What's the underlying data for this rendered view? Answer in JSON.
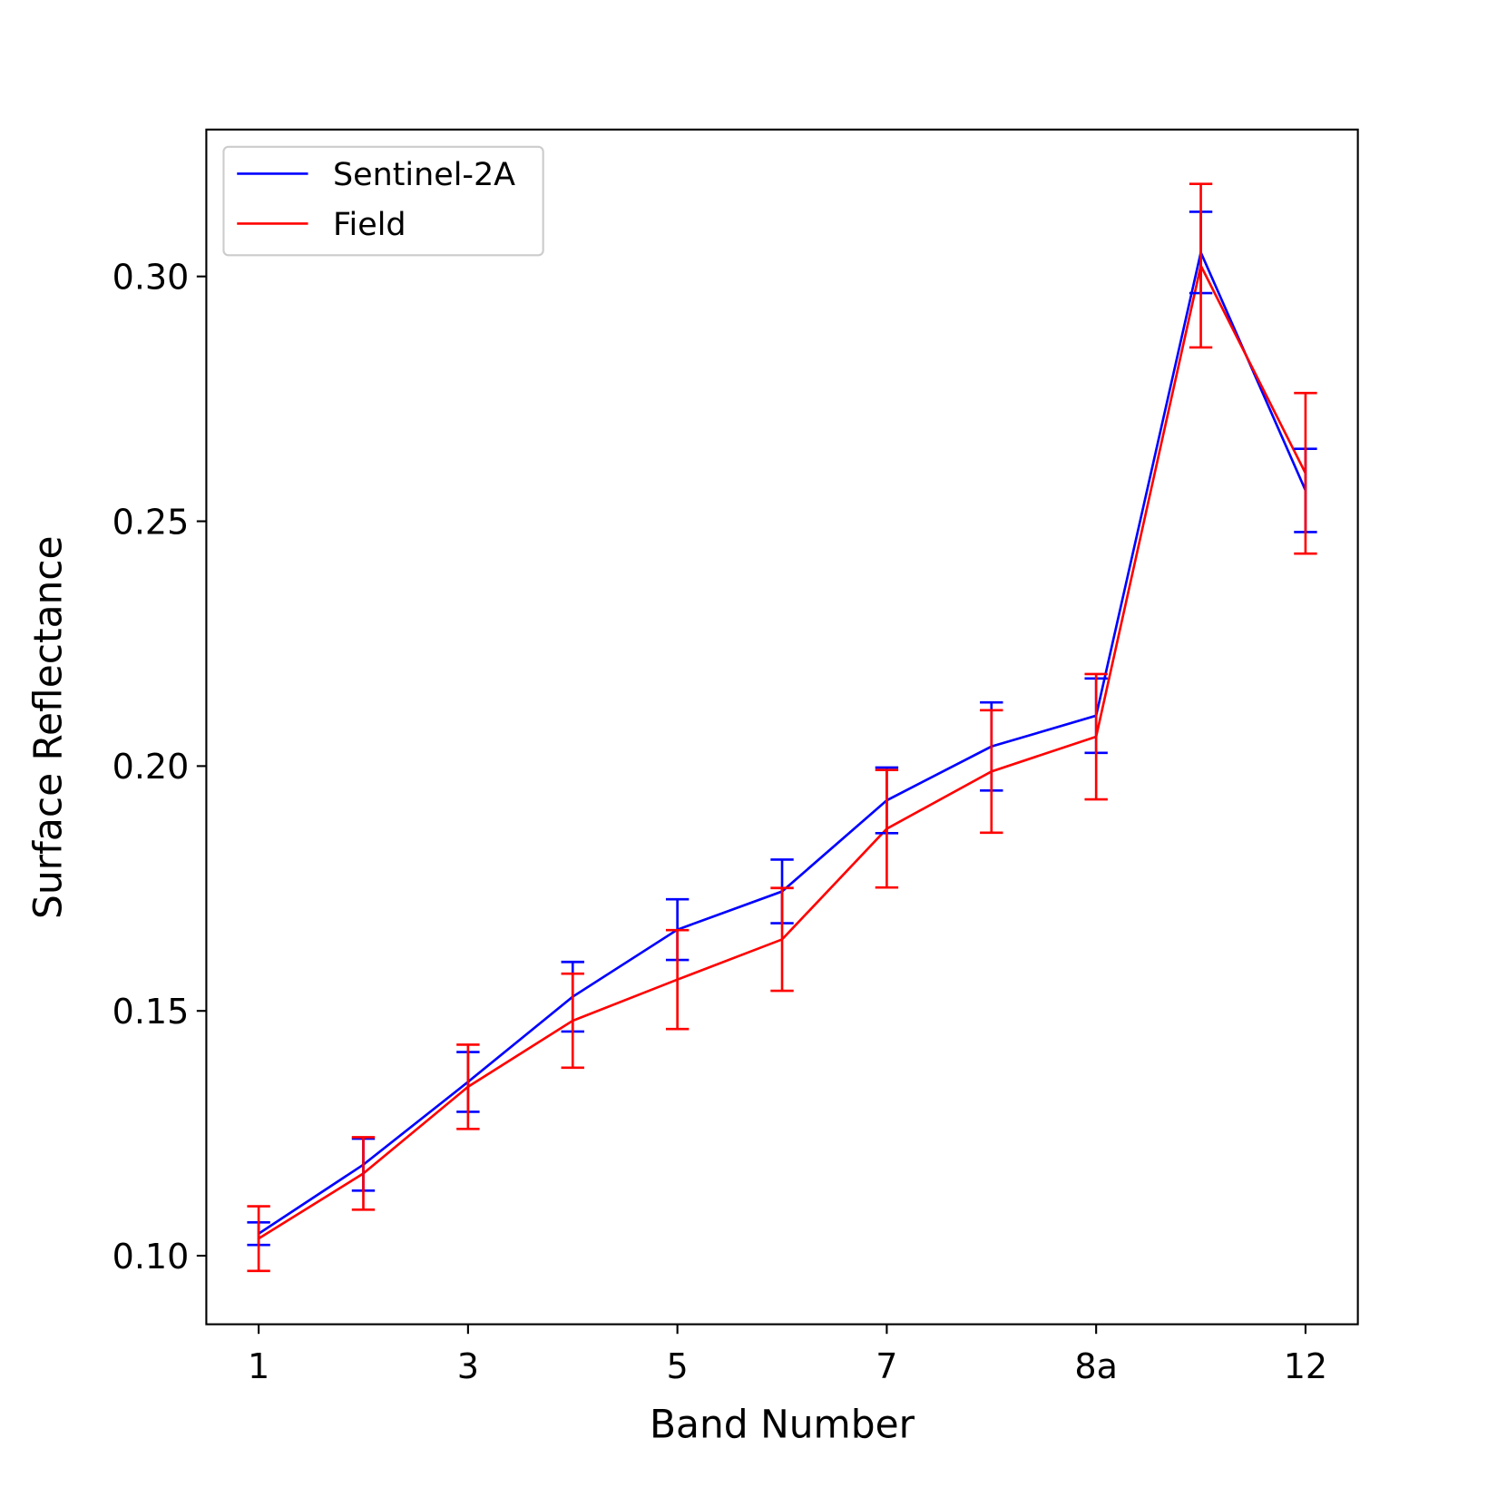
{
  "chart_data": {
    "type": "line",
    "x_label": "Band Number",
    "y_label": "Surface Reflectance",
    "categories": [
      "1",
      null,
      "3",
      null,
      "5",
      null,
      "7",
      null,
      "8a",
      null,
      "12"
    ],
    "series": [
      {
        "name": "Sentinel-2A",
        "color": "#0000ff",
        "values": [
          0.1045,
          0.1186,
          0.1355,
          0.1529,
          0.1666,
          0.1744,
          0.193,
          0.204,
          0.2103,
          0.3049,
          0.2563
        ],
        "errors": [
          0.0023,
          0.0053,
          0.0061,
          0.0071,
          0.0062,
          0.0065,
          0.0067,
          0.009,
          0.0076,
          0.0083,
          0.0085
        ]
      },
      {
        "name": "Field",
        "color": "#ff0000",
        "values": [
          0.1035,
          0.1168,
          0.1345,
          0.148,
          0.1564,
          0.1646,
          0.1872,
          0.1989,
          0.206,
          0.3022,
          0.2598
        ],
        "errors": [
          0.0066,
          0.0074,
          0.0086,
          0.0096,
          0.0101,
          0.0105,
          0.012,
          0.0125,
          0.0128,
          0.0167,
          0.0164
        ]
      }
    ],
    "ylim": [
      0.086,
      0.33
    ],
    "yticks": [
      {
        "value": 0.1,
        "label": "0.10"
      },
      {
        "value": 0.15,
        "label": "0.15"
      },
      {
        "value": 0.2,
        "label": "0.20"
      },
      {
        "value": 0.25,
        "label": "0.25"
      },
      {
        "value": 0.3,
        "label": "0.30"
      }
    ],
    "legend": "upper left",
    "grid": false
  }
}
